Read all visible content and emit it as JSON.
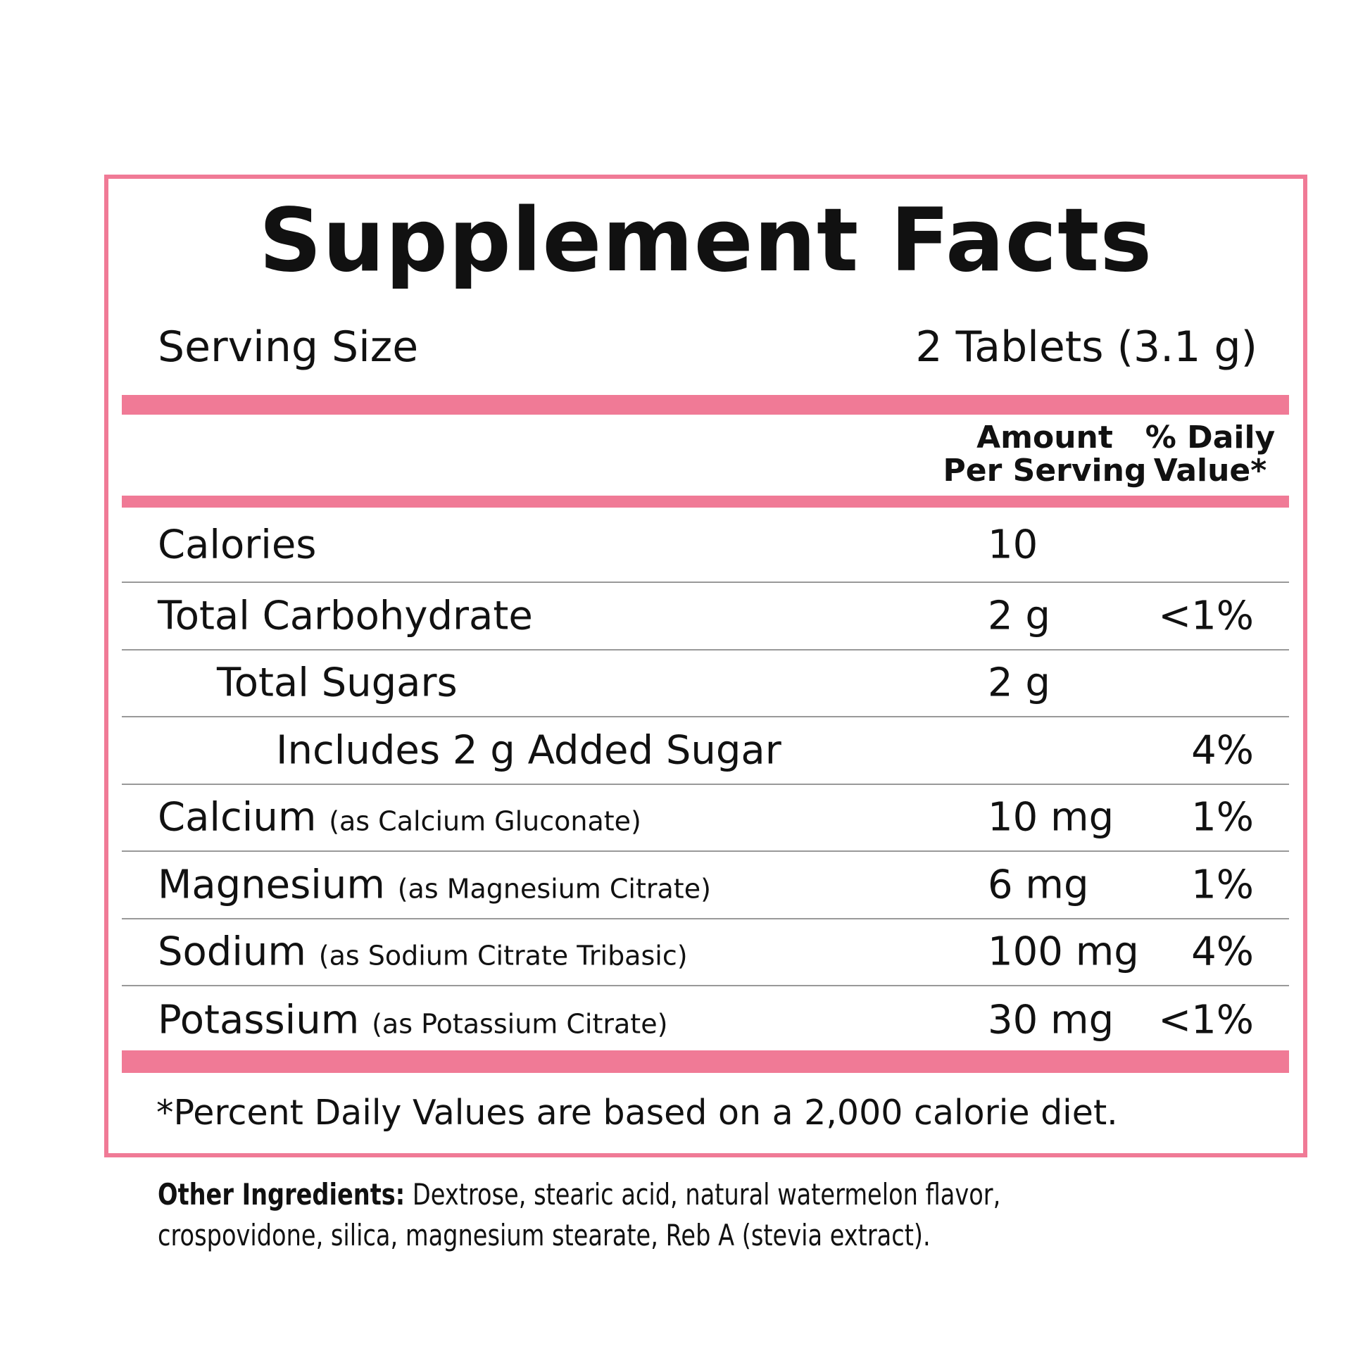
{
  "title": "Supplement Facts",
  "serving": {
    "label": "Serving Size",
    "value": "2 Tablets (3.1 g)"
  },
  "columns": {
    "amount": [
      "Amount",
      "Per Serving"
    ],
    "daily_value": [
      "% Daily",
      "Value*"
    ]
  },
  "rows": [
    {
      "name": "Calories",
      "amount": "10"
    },
    {
      "name": "Total Carbohydrate",
      "amount": "2 g",
      "daily_value": "<1%"
    },
    {
      "name": "Total Sugars",
      "amount": "2 g"
    },
    {
      "name": "Includes 2 g Added Sugar",
      "daily_value": "4%"
    },
    {
      "name": "Calcium",
      "note": "(as Calcium Gluconate)",
      "amount": "10 mg",
      "daily_value": "1%"
    },
    {
      "name": "Magnesium",
      "note": "(as Magnesium Citrate)",
      "amount": "6 mg",
      "daily_value": "1%"
    },
    {
      "name": "Sodium",
      "note": "(as Sodium Citrate Tribasic)",
      "amount": "100 mg",
      "daily_value": "4%"
    },
    {
      "name": "Potassium",
      "note": "(as Potassium Citrate)",
      "amount": "30 mg",
      "daily_value": "<1%"
    }
  ],
  "footnote": "*Percent Daily Values are based on a 2,000 calorie diet.",
  "other_ingredients": {
    "label": "Other Ingredients:",
    "text": "Dextrose, stearic acid, natural watermelon flavor, crospovidone, silica, magnesium stearate, Reb A (stevia extract)."
  }
}
